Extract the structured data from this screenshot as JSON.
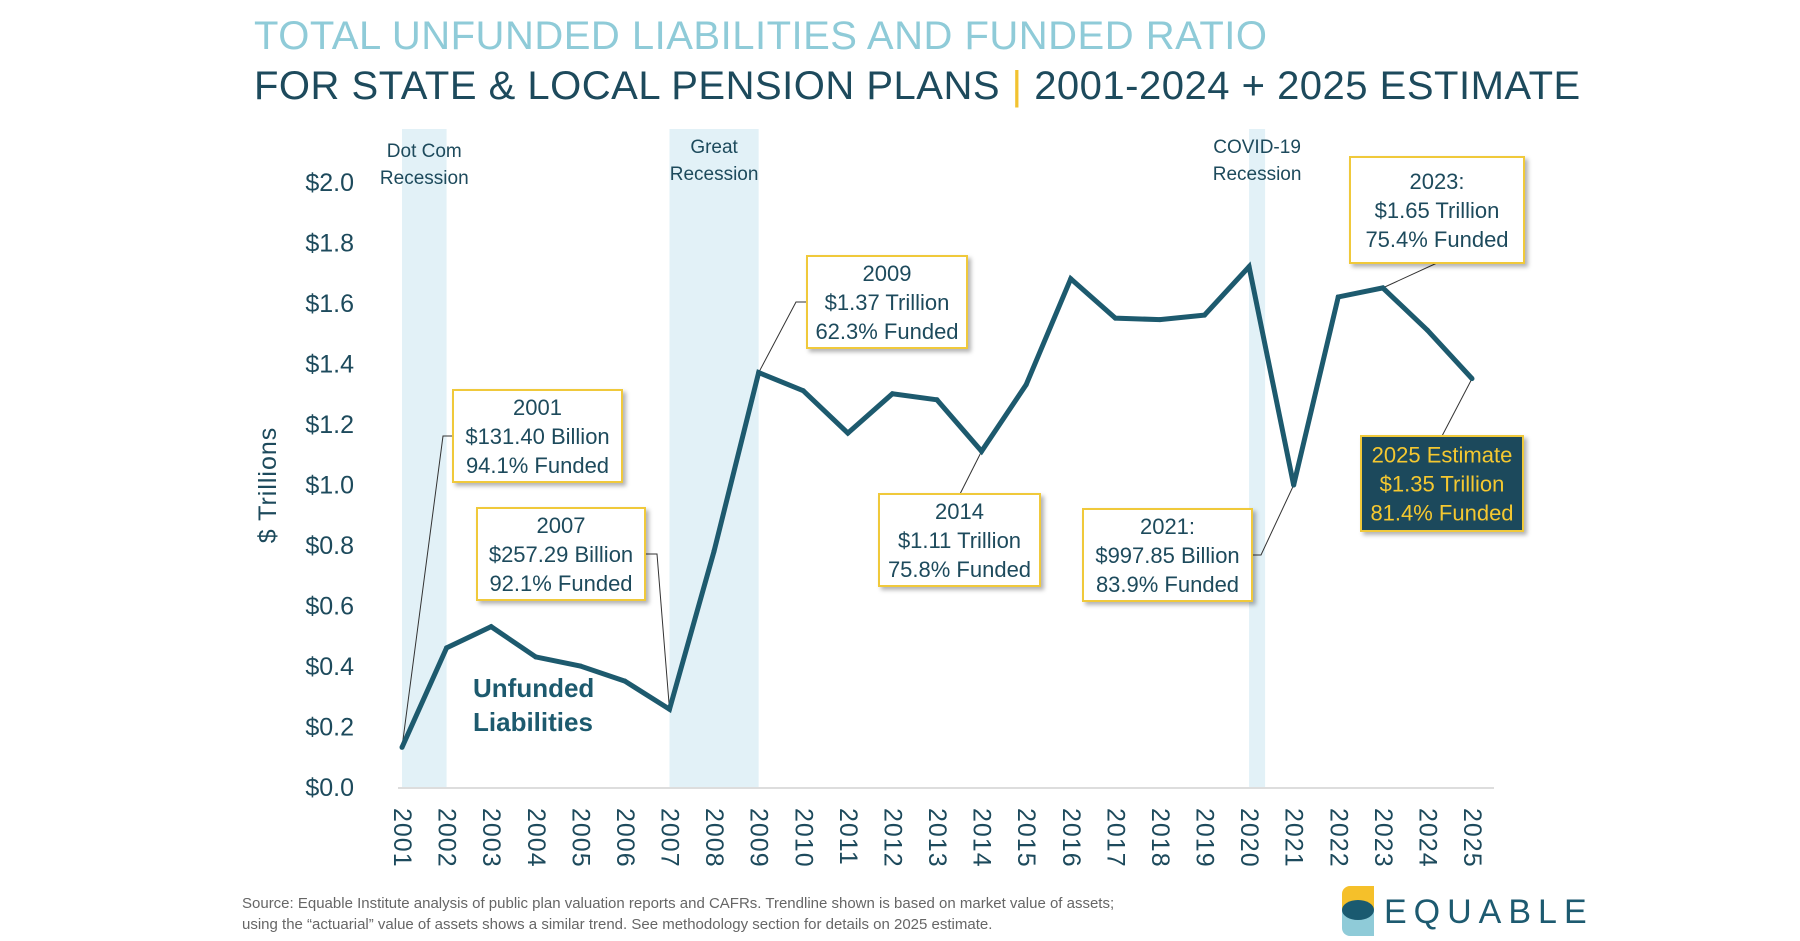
{
  "title": {
    "line1": "TOTAL UNFUNDED LIABILITIES AND FUNDED RATIO",
    "line2_left": "FOR STATE & LOCAL PENSION PLANS",
    "separator": "|",
    "line2_right": "2001-2024 + 2025 ESTIMATE"
  },
  "source": {
    "line1": "Source: Equable Institute analysis of public plan valuation reports and CAFRs. Trendline shown is based on market value of assets;",
    "line2": "using the “actuarial” value of assets shows a similar trend.  See methodology section for details on 2025 estimate."
  },
  "logo": {
    "text": "EQUABLE",
    "colors": {
      "yellow": "#f5c02a",
      "dark": "#1a5a70",
      "light": "#8fcbd8"
    }
  },
  "colors": {
    "line": "#1d5a6e",
    "text": "#1d4a5c",
    "title_light": "#8fcbd8",
    "band": "#e2f1f7",
    "callout_border": "#f0c93a",
    "estimate_fill": "#1a4a5c",
    "estimate_text": "#f5c830"
  },
  "chart_data": {
    "type": "line",
    "ylabel": "$ Trillions",
    "ylim": [
      0,
      2.0
    ],
    "yticks": [
      "$0.0",
      "$0.2",
      "$0.4",
      "$0.6",
      "$0.8",
      "$1.0",
      "$1.2",
      "$1.4",
      "$1.6",
      "$1.8",
      "$2.0"
    ],
    "ytick_values": [
      0,
      0.2,
      0.4,
      0.6,
      0.8,
      1.0,
      1.2,
      1.4,
      1.6,
      1.8,
      2.0
    ],
    "grid": false,
    "x": [
      "2001",
      "2002",
      "2003",
      "2004",
      "2005",
      "2006",
      "2007",
      "2008",
      "2009",
      "2010",
      "2011",
      "2012",
      "2013",
      "2014",
      "2015",
      "2016",
      "2017",
      "2018",
      "2019",
      "2020",
      "2021",
      "2022",
      "2023",
      "2024",
      "2025"
    ],
    "series": [
      {
        "name": "Unfunded Liabilities",
        "values": [
          0.131,
          0.46,
          0.53,
          0.43,
          0.4,
          0.35,
          0.257,
          0.78,
          1.37,
          1.31,
          1.17,
          1.3,
          1.28,
          1.11,
          1.33,
          1.68,
          1.55,
          1.545,
          1.56,
          1.72,
          0.998,
          1.62,
          1.65,
          1.51,
          1.35
        ]
      }
    ],
    "series_label": [
      "Unfunded",
      "Liabilities"
    ],
    "recessions": [
      {
        "label": [
          "Dot Com",
          "Recession"
        ],
        "start": "2001",
        "end": "2002"
      },
      {
        "label": [
          "Great",
          "Recession"
        ],
        "start": "2007",
        "end": "2009"
      },
      {
        "label": [
          "COVID-19",
          "Recession"
        ],
        "start": "2020",
        "end": "2020"
      }
    ],
    "annotations": [
      {
        "year": "2001",
        "lines": [
          "2001",
          "$131.40 Billion",
          "94.1% Funded"
        ]
      },
      {
        "year": "2007",
        "lines": [
          "2007",
          "$257.29 Billion",
          "92.1% Funded"
        ]
      },
      {
        "year": "2009",
        "lines": [
          "2009",
          "$1.37 Trillion",
          "62.3% Funded"
        ]
      },
      {
        "year": "2014",
        "lines": [
          "2014",
          "$1.11 Trillion",
          "75.8% Funded"
        ]
      },
      {
        "year": "2021",
        "lines": [
          "2021:",
          "$997.85 Billion",
          "83.9% Funded"
        ]
      },
      {
        "year": "2023",
        "lines": [
          "2023:",
          "$1.65 Trillion",
          "75.4% Funded"
        ]
      },
      {
        "year": "2025",
        "lines": [
          "2025 Estimate",
          "$1.35 Trillion",
          "81.4% Funded"
        ],
        "estimate": true
      }
    ]
  }
}
